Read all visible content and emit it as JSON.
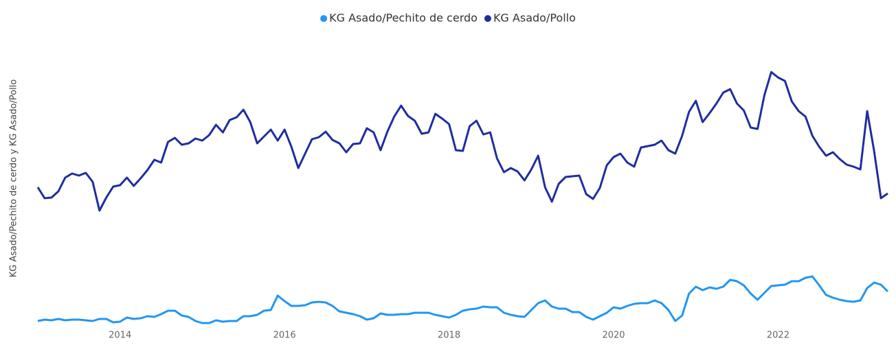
{
  "chart_data": {
    "type": "line",
    "ylabel": "KG Asado/Pechito de cerdo y KG Asado/Pollo",
    "x": [
      2013,
      2013.083,
      2013.167,
      2013.25,
      2013.333,
      2013.417,
      2013.5,
      2013.583,
      2013.667,
      2013.75,
      2013.833,
      2013.917,
      2014,
      2014.083,
      2014.167,
      2014.25,
      2014.333,
      2014.417,
      2014.5,
      2014.583,
      2014.667,
      2014.75,
      2014.833,
      2014.917,
      2015,
      2015.083,
      2015.167,
      2015.25,
      2015.333,
      2015.417,
      2015.5,
      2015.583,
      2015.667,
      2015.75,
      2015.833,
      2015.917,
      2016,
      2016.083,
      2016.167,
      2016.25,
      2016.333,
      2016.417,
      2016.5,
      2016.583,
      2016.667,
      2016.75,
      2016.833,
      2016.917,
      2017,
      2017.083,
      2017.167,
      2017.25,
      2017.333,
      2017.417,
      2017.5,
      2017.583,
      2017.667,
      2017.75,
      2017.833,
      2017.917,
      2018,
      2018.083,
      2018.167,
      2018.25,
      2018.333,
      2018.417,
      2018.5,
      2018.583,
      2018.667,
      2018.75,
      2018.833,
      2018.917,
      2019,
      2019.083,
      2019.167,
      2019.25,
      2019.333,
      2019.417,
      2019.5,
      2019.583,
      2019.667,
      2019.75,
      2019.833,
      2019.917,
      2020,
      2020.083,
      2020.167,
      2020.25,
      2020.333,
      2020.417,
      2020.5,
      2020.583,
      2020.667,
      2020.75,
      2020.833,
      2020.917,
      2021,
      2021.083,
      2021.167,
      2021.25,
      2021.333,
      2021.417,
      2021.5,
      2021.583,
      2021.667,
      2021.75,
      2021.833,
      2021.917,
      2022,
      2022.083,
      2022.167,
      2022.25,
      2022.333,
      2022.417,
      2022.5,
      2022.583,
      2022.667,
      2022.75,
      2022.833,
      2022.917,
      2023,
      2023.083,
      2023.167,
      2023.25,
      2023.333
    ],
    "series": [
      {
        "name": "KG Asado/Pechito de cerdo",
        "color": "#2196f3",
        "values": [
          12,
          14,
          13,
          15,
          13,
          14,
          14,
          13,
          12,
          15,
          15,
          10,
          11,
          17,
          15,
          16,
          19,
          18,
          22,
          27,
          27,
          20,
          18,
          12,
          9,
          9,
          13,
          11,
          12,
          12,
          19,
          19,
          21,
          27,
          28,
          49,
          41,
          34,
          34,
          35,
          39,
          40,
          39,
          34,
          26,
          24,
          22,
          19,
          14,
          16,
          23,
          21,
          21,
          22,
          22,
          24,
          24,
          24,
          21,
          19,
          17,
          21,
          27,
          29,
          30,
          33,
          32,
          32,
          24,
          21,
          19,
          18,
          28,
          38,
          42,
          33,
          30,
          30,
          25,
          25,
          18,
          14,
          19,
          24,
          32,
          30,
          34,
          37,
          38,
          38,
          42,
          38,
          28,
          12,
          20,
          52,
          62,
          57,
          61,
          59,
          62,
          72,
          70,
          64,
          52,
          43,
          53,
          63,
          64,
          65,
          70,
          70,
          75,
          77,
          64,
          50,
          46,
          43,
          41,
          40,
          42,
          60,
          68,
          65,
          55
        ]
      },
      {
        "name": "KG Asado/Pollo",
        "color": "#1f2d9e",
        "values": [
          207,
          191,
          192,
          201,
          221,
          227,
          224,
          228,
          215,
          173,
          192,
          208,
          210,
          221,
          209,
          220,
          232,
          247,
          243,
          273,
          279,
          269,
          271,
          278,
          275,
          283,
          298,
          287,
          305,
          309,
          320,
          302,
          271,
          281,
          291,
          275,
          291,
          266,
          235,
          256,
          277,
          280,
          288,
          276,
          271,
          258,
          270,
          271,
          293,
          287,
          261,
          288,
          310,
          326,
          311,
          304,
          285,
          287,
          314,
          307,
          299,
          261,
          260,
          296,
          304,
          284,
          287,
          249,
          229,
          235,
          230,
          217,
          233,
          253,
          207,
          186,
          212,
          222,
          223,
          224,
          197,
          190,
          206,
          239,
          251,
          256,
          243,
          237,
          265,
          267,
          269,
          275,
          261,
          256,
          282,
          317,
          333,
          302,
          315,
          329,
          345,
          350,
          329,
          319,
          294,
          292,
          341,
          375,
          367,
          362,
          332,
          318,
          310,
          282,
          266,
          253,
          258,
          248,
          240,
          237,
          233,
          318,
          260,
          191,
          198
        ]
      }
    ],
    "xlim": [
      2013,
      2023.333
    ],
    "xticks": [
      2014,
      2016,
      2018,
      2020,
      2022
    ],
    "ylim": [
      0,
      400
    ],
    "legend": "top"
  }
}
